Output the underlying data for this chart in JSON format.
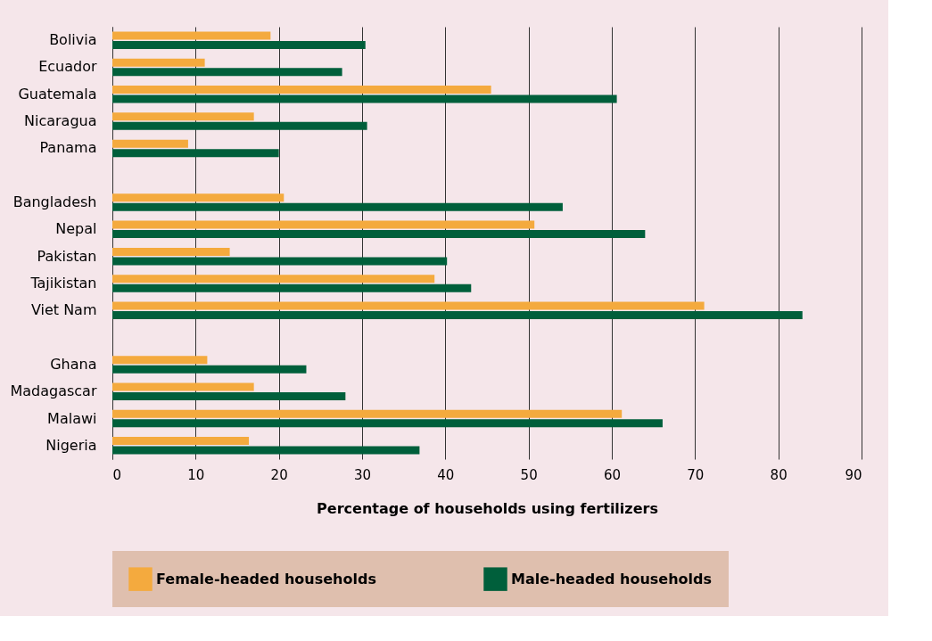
{
  "chart_data": {
    "type": "bar",
    "orientation": "horizontal",
    "xlabel": "Percentage of households using fertilizers",
    "categories": [
      "Bolivia",
      "Ecuador",
      "Guatemala",
      "Nicaragua",
      "Panama",
      null,
      "Bangladesh",
      "Nepal",
      "Pakistan",
      "Tajikistan",
      "Viet Nam",
      null,
      "Ghana",
      "Madagascar",
      "Malawi",
      "Nigeria"
    ],
    "series": [
      {
        "name": "Female-headed households",
        "color": "#f4aa3e",
        "values": [
          19.0,
          11.1,
          45.5,
          17.0,
          9.1,
          null,
          20.6,
          50.7,
          14.1,
          38.7,
          71.1,
          null,
          11.4,
          17.0,
          61.2,
          16.4
        ]
      },
      {
        "name": "Male-headed households",
        "color": "#005f3b",
        "values": [
          30.4,
          27.6,
          60.6,
          30.6,
          20.0,
          null,
          54.1,
          64.0,
          40.2,
          43.1,
          82.9,
          null,
          23.3,
          28.0,
          66.1,
          36.9
        ]
      }
    ],
    "xlim": [
      0,
      90
    ],
    "xticks": [
      0,
      10,
      20,
      30,
      40,
      50,
      60,
      70,
      80,
      90
    ],
    "grid": "x",
    "legend": "bottom"
  }
}
